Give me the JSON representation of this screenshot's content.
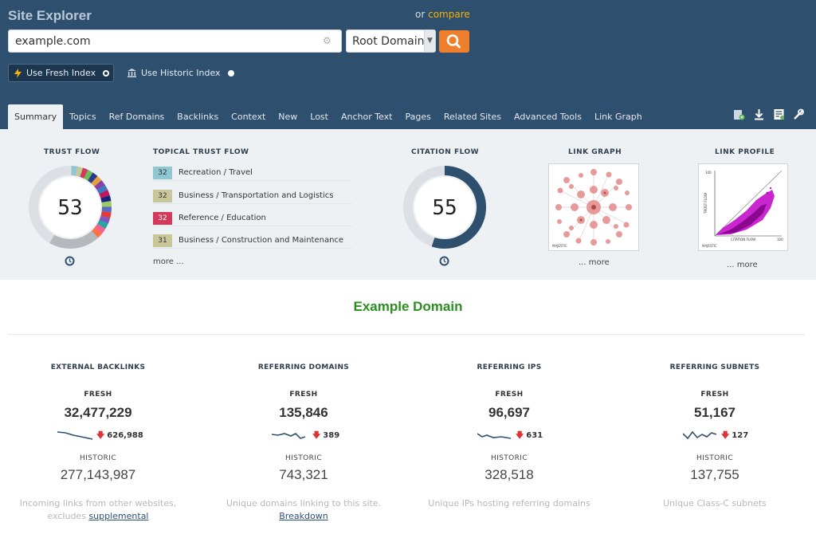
{
  "header": {
    "title": "Site Explorer",
    "compare_prefix": "or",
    "compare_link": "compare",
    "search_value": "example.com",
    "scope_value": "Root Domain",
    "fresh_index_label": "Use Fresh Index",
    "historic_index_label": "Use Historic Index"
  },
  "tabs": [
    "Summary",
    "Topics",
    "Ref Domains",
    "Backlinks",
    "Context",
    "New",
    "Lost",
    "Anchor Text",
    "Pages",
    "Related Sites",
    "Advanced Tools",
    "Link Graph"
  ],
  "panel": {
    "trust_flow_title": "TRUST FLOW",
    "trust_flow_value": "53",
    "topical_title": "TOPICAL TRUST FLOW",
    "topics": [
      {
        "score": "32",
        "label": "Recreation / Travel",
        "color": "#8fc8d0"
      },
      {
        "score": "32",
        "label": "Business / Transportation and Logistics",
        "color": "#c8c79a"
      },
      {
        "score": "32",
        "label": "Reference / Education",
        "color": "#d23a5c"
      },
      {
        "score": "31",
        "label": "Business / Construction and Maintenance",
        "color": "#c8c79a"
      }
    ],
    "topics_more": "more ...",
    "citation_flow_title": "CITATION FLOW",
    "citation_flow_value": "55",
    "link_graph_title": "LINK GRAPH",
    "link_graph_more": "... more",
    "link_profile_title": "LINK PROFILE",
    "link_profile_more": "... more",
    "link_profile_y_label": "TRUST FLOW",
    "link_profile_x_label": "CITATION FLOW",
    "link_profile_max": "100",
    "majestic_logo_text": "MAJESTIC"
  },
  "domain_title": "Example Domain",
  "stats": [
    {
      "title": "EXTERNAL BACKLINKS",
      "fresh_label": "FRESH",
      "fresh_value": "32,477,229",
      "delta": "626,988",
      "historic_label": "HISTORIC",
      "historic_value": "277,143,987",
      "desc": "Incoming links from other websites,",
      "desc2": "excludes",
      "desc_link": "supplemental"
    },
    {
      "title": "REFERRING DOMAINS",
      "fresh_label": "FRESH",
      "fresh_value": "135,846",
      "delta": "389",
      "historic_label": "HISTORIC",
      "historic_value": "743,321",
      "desc": "Unique domains linking to this site.",
      "desc2": "",
      "desc_link": "Breakdown"
    },
    {
      "title": "REFERRING IPS",
      "fresh_label": "FRESH",
      "fresh_value": "96,697",
      "delta": "631",
      "historic_label": "HISTORIC",
      "historic_value": "328,518",
      "desc": "Unique IPs hosting referring domains",
      "desc2": "",
      "desc_link": ""
    },
    {
      "title": "REFERRING SUBNETS",
      "fresh_label": "FRESH",
      "fresh_value": "51,167",
      "delta": "127",
      "historic_label": "HISTORIC",
      "historic_value": "137,755",
      "desc": "Unique Class-C subnets",
      "desc2": "",
      "desc_link": ""
    }
  ],
  "colors": {
    "header_bg": "#2f4f6e",
    "accent": "#f07f2c",
    "domain_green": "#2a8f1f",
    "citation_ring": "#2f4f6e",
    "delta_down": "#dd3333"
  }
}
